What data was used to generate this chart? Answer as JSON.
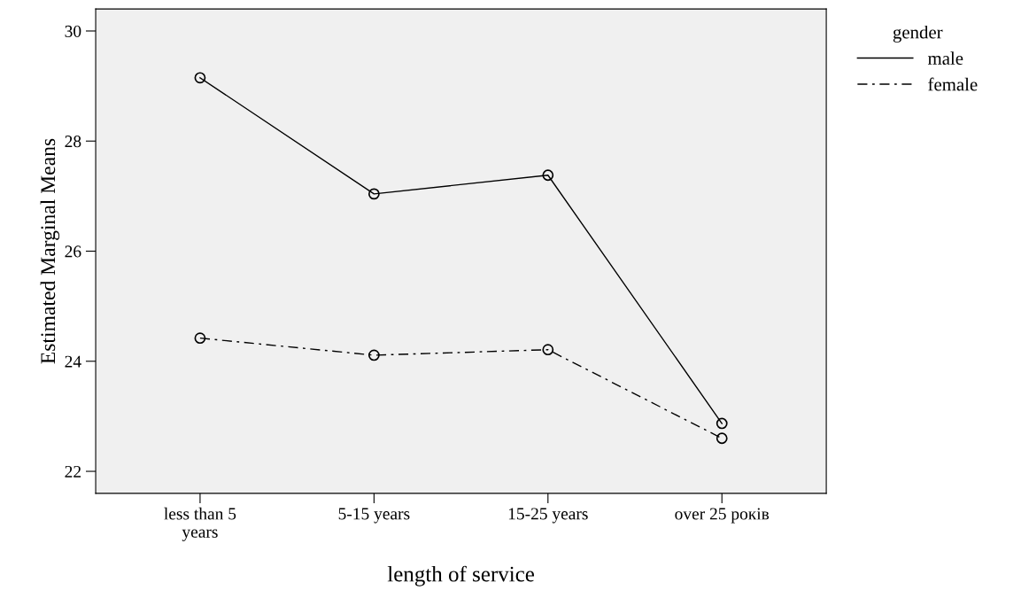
{
  "chart_data": {
    "type": "line",
    "xlabel": "length of service",
    "ylabel": "Estimated Marginal Means",
    "legend_title": "gender",
    "categories": [
      "less than 5\nyears",
      "5-15 years",
      "15-25 years",
      "over 25 років"
    ],
    "series": [
      {
        "name": "male",
        "color": "#000000",
        "values": [
          29.15,
          27.04,
          27.38,
          22.87
        ],
        "line_style": "solid"
      },
      {
        "name": "female",
        "color": "#000000",
        "values": [
          24.42,
          24.11,
          24.21,
          22.6
        ],
        "line_style": "dashdot"
      }
    ],
    "ylim": [
      21.6,
      30.4
    ],
    "yticks": [
      22,
      24,
      26,
      28,
      30
    ],
    "marker": "circle",
    "grid": false,
    "legend": "top right"
  }
}
